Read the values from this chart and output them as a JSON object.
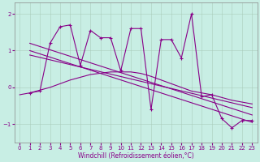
{
  "xlabel": "Windchill (Refroidissement éolien,°C)",
  "bg_color": "#c8eee4",
  "line_color": "#880088",
  "xlim": [
    -0.5,
    23.5
  ],
  "ylim": [
    -1.5,
    2.3
  ],
  "yticks": [
    -1,
    0,
    1,
    2
  ],
  "xticks": [
    0,
    1,
    2,
    3,
    4,
    5,
    6,
    7,
    8,
    9,
    10,
    11,
    12,
    13,
    14,
    15,
    16,
    17,
    18,
    19,
    20,
    21,
    22,
    23
  ],
  "main_x": [
    1,
    2,
    3,
    4,
    5,
    6,
    7,
    8,
    9,
    10,
    11,
    12,
    13,
    14,
    15,
    16,
    17,
    18,
    19,
    20,
    21,
    22,
    23
  ],
  "main_y": [
    -0.15,
    -0.1,
    1.2,
    1.65,
    1.7,
    0.6,
    1.55,
    1.35,
    1.35,
    0.45,
    1.6,
    1.6,
    -0.6,
    1.3,
    1.3,
    0.8,
    2.0,
    -0.25,
    -0.2,
    -0.85,
    -1.1,
    -0.9,
    -0.9
  ],
  "trend1_x": [
    1,
    23
  ],
  "trend1_y": [
    1.2,
    -0.75
  ],
  "trend2_x": [
    1,
    23
  ],
  "trend2_y": [
    1.0,
    -0.95
  ],
  "trend3_x": [
    1,
    23
  ],
  "trend3_y": [
    0.88,
    -0.55
  ],
  "bell_x": [
    0,
    1,
    3,
    5,
    7,
    9,
    11,
    12,
    13,
    15,
    17,
    19,
    21,
    23
  ],
  "bell_y": [
    -0.2,
    -0.15,
    0.0,
    0.2,
    0.35,
    0.42,
    0.42,
    0.38,
    0.3,
    0.1,
    -0.1,
    -0.2,
    -0.35,
    -0.45
  ]
}
